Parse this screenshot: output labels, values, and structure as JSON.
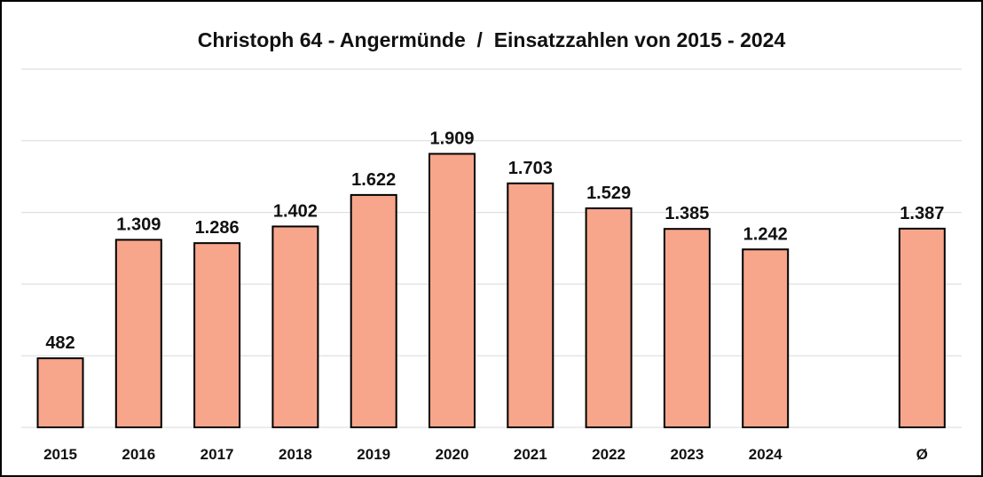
{
  "chart_data": {
    "type": "bar",
    "title": "Christoph 64 - Angermünde  /  Einsatzzahlen von 2015 - 2024",
    "xlabel": "",
    "ylabel": "",
    "ylim": [
      0,
      2500
    ],
    "grid": true,
    "legend": "none",
    "bar_color": "#f7a68b",
    "categories": [
      "2015",
      "2016",
      "2017",
      "2018",
      "2019",
      "2020",
      "2021",
      "2022",
      "2023",
      "2024",
      "Ø"
    ],
    "values": [
      482,
      1309,
      1286,
      1402,
      1622,
      1909,
      1703,
      1529,
      1385,
      1242,
      1387
    ],
    "value_labels": [
      "482",
      "1.309",
      "1.286",
      "1.402",
      "1.622",
      "1.909",
      "1.703",
      "1.529",
      "1.385",
      "1.242",
      "1.387"
    ]
  }
}
